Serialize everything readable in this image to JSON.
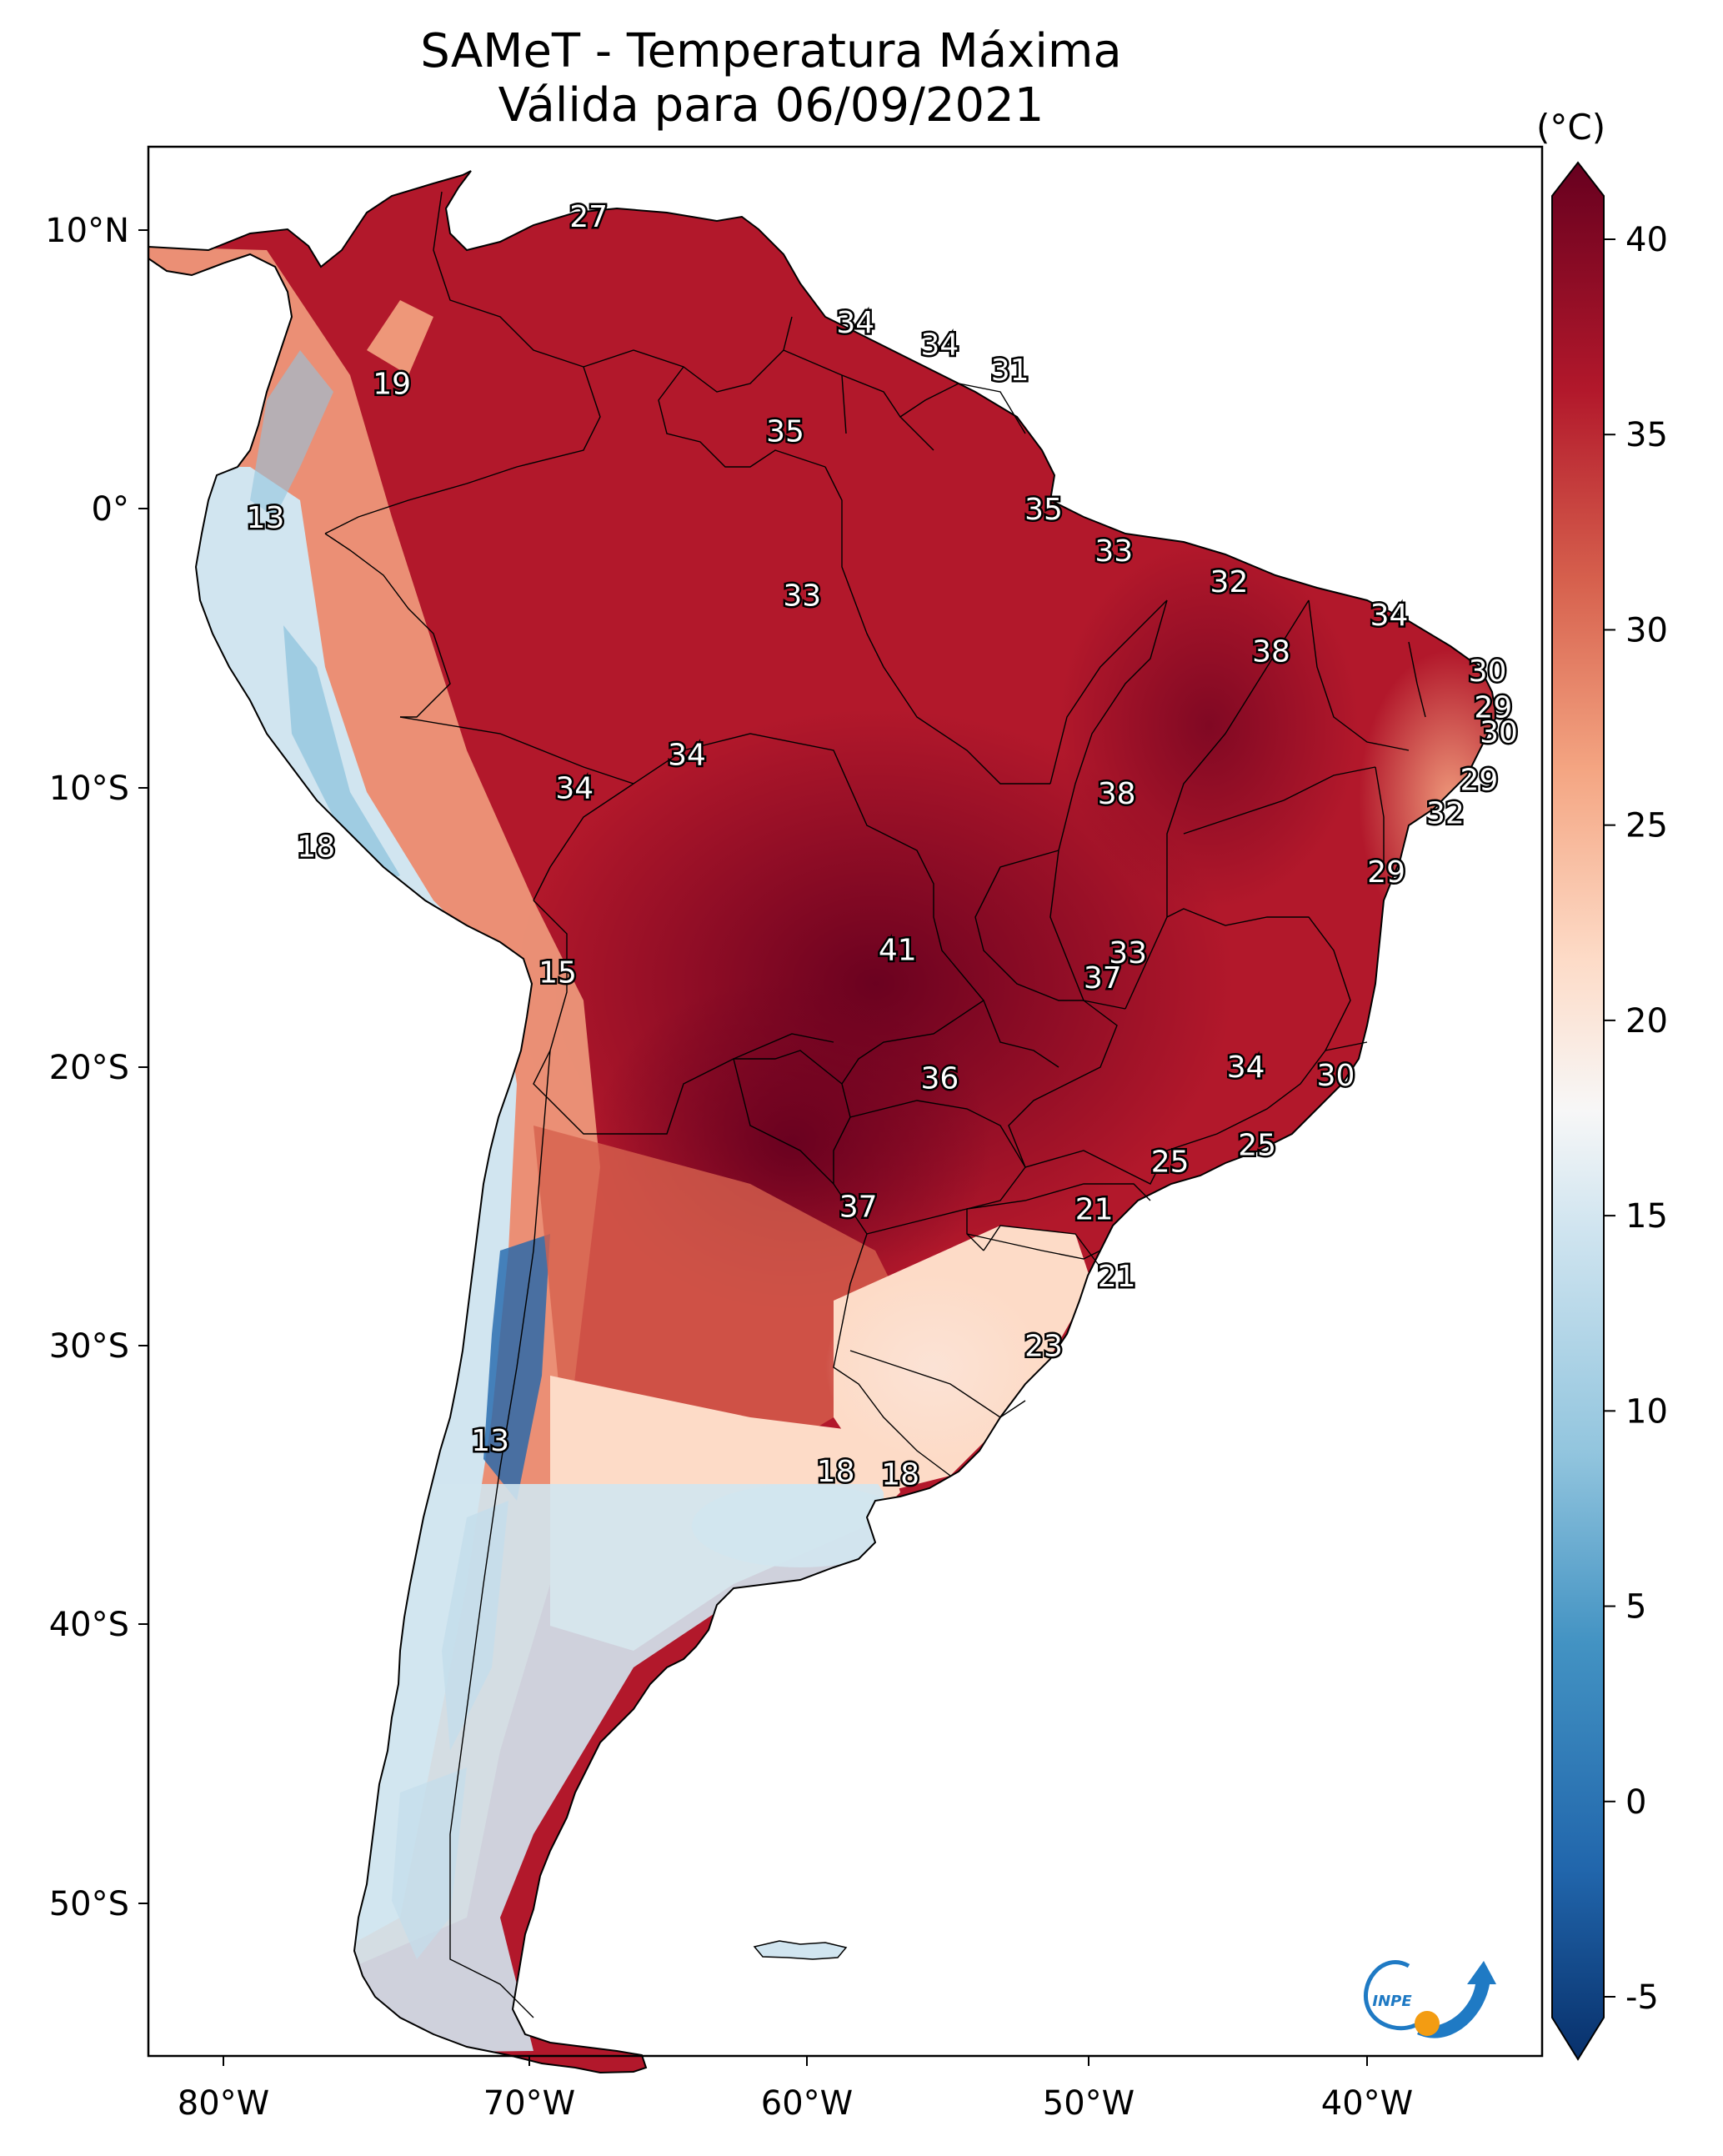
{
  "title": "SAMeT - Temperatura Máxima",
  "subtitle": "Válida para 06/09/2021",
  "colorbar": {
    "unit": "(°C)",
    "ticks": [
      "40",
      "35",
      "30",
      "25",
      "20",
      "15",
      "10",
      "5",
      "0",
      "-5"
    ],
    "min": -5,
    "max": 40,
    "colors": [
      "#08306b",
      "#2166ac",
      "#4393c3",
      "#92c5de",
      "#d1e5f0",
      "#f7f7f7",
      "#fddbc7",
      "#f4a582",
      "#d6604d",
      "#b2182b",
      "#67001f"
    ]
  },
  "axes": {
    "lon_labels": [
      "80°W",
      "70°W",
      "60°W",
      "50°W",
      "40°W"
    ],
    "lat_labels": [
      "10°N",
      "0°",
      "10°S",
      "20°S",
      "30°S",
      "40°S",
      "50°S"
    ]
  },
  "logo": {
    "text": "INPE",
    "colors": {
      "blue": "#1f7ac4",
      "orange": "#f39c12"
    }
  },
  "labels": [
    {
      "value": "27",
      "lon": -67,
      "lat": 10.5
    },
    {
      "value": "19",
      "lon": -74,
      "lat": 4.5
    },
    {
      "value": "34",
      "lon": -57.5,
      "lat": 6.7
    },
    {
      "value": "34",
      "lon": -54.5,
      "lat": 5.9
    },
    {
      "value": "31",
      "lon": -52,
      "lat": 5.0
    },
    {
      "value": "35",
      "lon": -60,
      "lat": 2.8
    },
    {
      "value": "13",
      "lon": -78.5,
      "lat": -0.3
    },
    {
      "value": "35",
      "lon": -50.8,
      "lat": 0
    },
    {
      "value": "33",
      "lon": -48.3,
      "lat": -1.5
    },
    {
      "value": "32",
      "lon": -44.2,
      "lat": -2.6
    },
    {
      "value": "33",
      "lon": -59.4,
      "lat": -3.1
    },
    {
      "value": "34",
      "lon": -38.5,
      "lat": -3.8
    },
    {
      "value": "38",
      "lon": -42.7,
      "lat": -5.1
    },
    {
      "value": "30",
      "lon": -35,
      "lat": -5.8
    },
    {
      "value": "29",
      "lon": -34.8,
      "lat": -7.1
    },
    {
      "value": "30",
      "lon": -34.6,
      "lat": -8.0
    },
    {
      "value": "34",
      "lon": -63.5,
      "lat": -8.8
    },
    {
      "value": "34",
      "lon": -67.5,
      "lat": -10.0
    },
    {
      "value": "38",
      "lon": -48.2,
      "lat": -10.2
    },
    {
      "value": "29",
      "lon": -35.3,
      "lat": -9.7
    },
    {
      "value": "32",
      "lon": -36.5,
      "lat": -10.9
    },
    {
      "value": "18",
      "lon": -76.7,
      "lat": -12.1
    },
    {
      "value": "29",
      "lon": -38.6,
      "lat": -13.0
    },
    {
      "value": "41",
      "lon": -56,
      "lat": -15.8
    },
    {
      "value": "33",
      "lon": -47.8,
      "lat": -15.9
    },
    {
      "value": "37",
      "lon": -48.7,
      "lat": -16.8
    },
    {
      "value": "15",
      "lon": -68.1,
      "lat": -16.6
    },
    {
      "value": "34",
      "lon": -43.6,
      "lat": -20.0
    },
    {
      "value": "30",
      "lon": -40.4,
      "lat": -20.3
    },
    {
      "value": "36",
      "lon": -54.5,
      "lat": -20.4
    },
    {
      "value": "25",
      "lon": -46.3,
      "lat": -23.4
    },
    {
      "value": "25",
      "lon": -43.2,
      "lat": -22.8
    },
    {
      "value": "37",
      "lon": -57.4,
      "lat": -25.0
    },
    {
      "value": "21",
      "lon": -49.0,
      "lat": -25.1
    },
    {
      "value": "21",
      "lon": -48.2,
      "lat": -27.5
    },
    {
      "value": "23",
      "lon": -50.8,
      "lat": -30.0
    },
    {
      "value": "13",
      "lon": -70.5,
      "lat": -33.4
    },
    {
      "value": "18",
      "lon": -58.2,
      "lat": -34.5
    },
    {
      "value": "18",
      "lon": -55.9,
      "lat": -34.6
    }
  ]
}
